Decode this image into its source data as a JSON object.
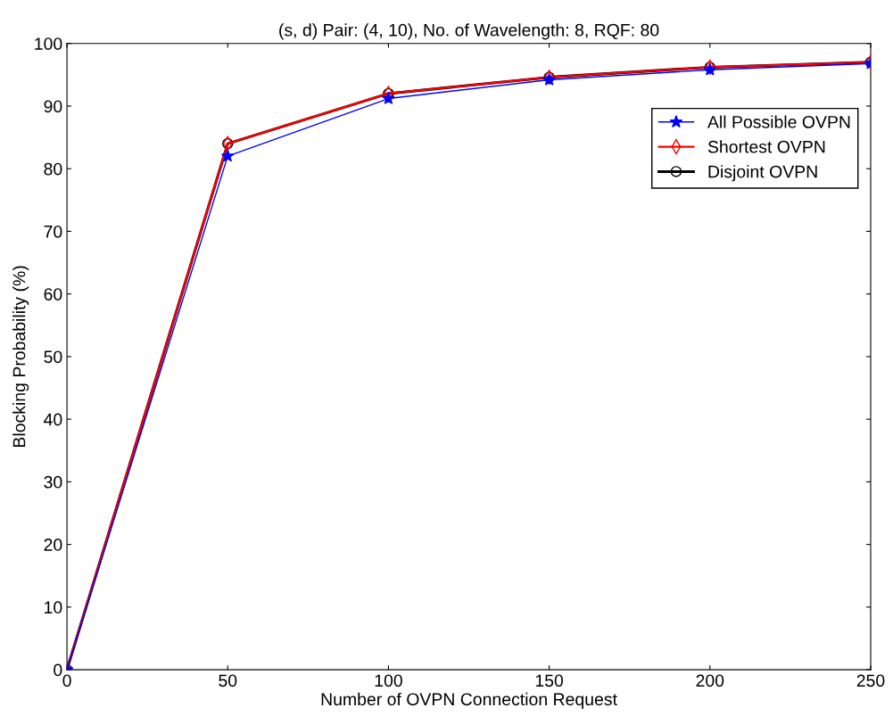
{
  "chart_data": {
    "type": "line",
    "title": "(s, d) Pair: (4, 10), No. of Wavelength: 8, RQF: 80",
    "xlabel": "Number of OVPN Connection Request",
    "ylabel": "Blocking Probability (%)",
    "x": [
      0,
      50,
      100,
      150,
      200,
      250
    ],
    "series": [
      {
        "name": "All Possible OVPN",
        "color": "#0000ff",
        "marker": "star",
        "values": [
          0,
          82,
          91.2,
          94.2,
          95.8,
          96.8
        ]
      },
      {
        "name": "Shortest OVPN",
        "color": "#ff0000",
        "marker": "diamond",
        "values": [
          0,
          84,
          92,
          94.6,
          96.2,
          97
        ]
      },
      {
        "name": "Disjoint OVPN",
        "color": "#000000",
        "marker": "circle",
        "values": [
          0,
          84,
          92,
          94.6,
          96.2,
          97
        ]
      }
    ],
    "xlim": [
      0,
      250
    ],
    "xticks": [
      0,
      50,
      100,
      150,
      200,
      250
    ],
    "ylim": [
      0,
      100
    ],
    "yticks": [
      0,
      10,
      20,
      30,
      40,
      50,
      60,
      70,
      80,
      90,
      100
    ],
    "grid": false,
    "legend": "top right",
    "line_style": "solid"
  }
}
